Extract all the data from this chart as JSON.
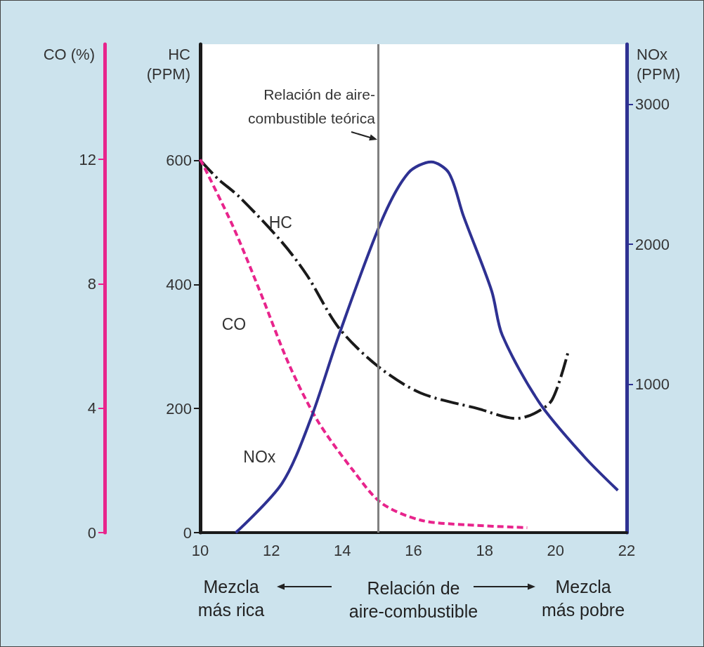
{
  "chart_data": {
    "type": "line",
    "xlabel": "Relación de\naire-combustible",
    "ylabel": "HC\n(PPM)",
    "y2label": "NOx\n(PPM)",
    "y3label": "CO (%)",
    "x": [
      10,
      10.5,
      11.1,
      12.3,
      13,
      13.9,
      15,
      16.2,
      17.8,
      18.9,
      19.4,
      19.9,
      20.35
    ],
    "xlim": [
      10,
      22
    ],
    "xticks": [
      10,
      12,
      14,
      16,
      18,
      20,
      22
    ],
    "ylim": [
      0,
      787
    ],
    "yticks": [
      0,
      200,
      400,
      600
    ],
    "y2lim": [
      -60,
      3430
    ],
    "y2ticks": [
      1000,
      2000,
      3000
    ],
    "y3lim": [
      0,
      15.7
    ],
    "y3ticks": [
      0,
      4,
      8,
      12
    ],
    "series": [
      {
        "name": "HC",
        "color": "#1a1a1a",
        "line_style": "dashdot",
        "axis": "y",
        "values": [
          600,
          570,
          541,
          468,
          415,
          330,
          268,
          225,
          200,
          184,
          192,
          214,
          291
        ]
      },
      {
        "name": "CO",
        "color": "#e8248c",
        "line_style": "dashed",
        "axis": "y3",
        "x": [
          10,
          10.9,
          11.7,
          12.5,
          13.3,
          14.3,
          15.1,
          16.2,
          17.5,
          19.2
        ],
        "values": [
          12,
          9.9,
          7.7,
          5.4,
          3.6,
          2.0,
          0.95,
          0.4,
          0.25,
          0.16
        ]
      },
      {
        "name": "NOx",
        "color": "#2e3192",
        "line_style": "solid",
        "axis": "y2",
        "x": [
          11.0,
          12.3,
          13.1,
          13.9,
          15.1,
          15.85,
          16.5,
          17.0,
          17.4,
          18.2,
          18.5,
          19.55,
          20.8,
          21.75
        ],
        "values": [
          -60,
          292,
          746,
          1350,
          2166,
          2509,
          2589,
          2509,
          2207,
          1667,
          1350,
          866,
          484,
          242
        ]
      }
    ],
    "ref_lines": [
      {
        "axis": "x",
        "value": 15,
        "label": "Relación de aire-\ncombustible teórica",
        "color": "#808080"
      }
    ],
    "annotations": [
      "Mezcla\nmás rica",
      "Mezcla\nmás pobre"
    ]
  }
}
